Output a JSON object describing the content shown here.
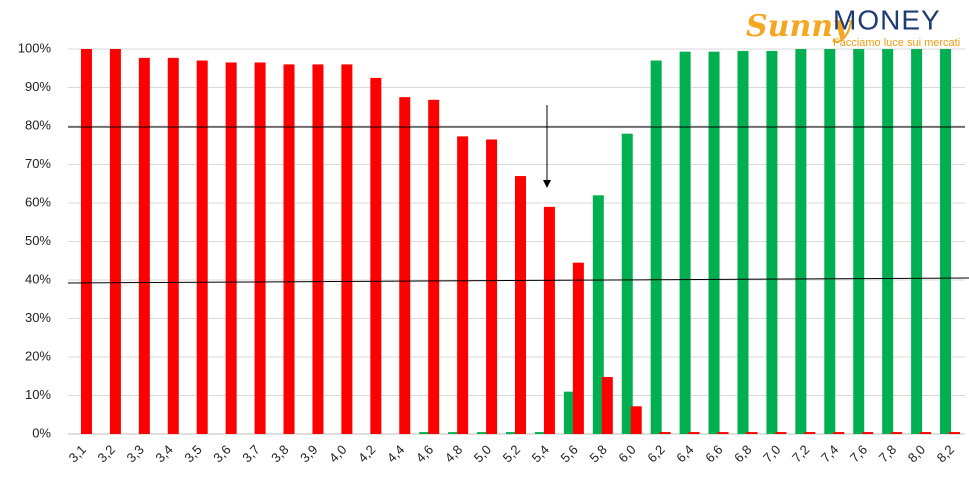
{
  "chart_data": {
    "type": "bar",
    "categories": [
      "3,1",
      "3,2",
      "3,3",
      "3,4",
      "3,5",
      "3,6",
      "3,7",
      "3,8",
      "3,9",
      "4,0",
      "4,2",
      "4,4",
      "4,6",
      "4,8",
      "5,0",
      "5,2",
      "5,4",
      "5,6",
      "5,8",
      "6,0",
      "6,2",
      "6,4",
      "6,6",
      "6,8",
      "7,0",
      "7,2",
      "7,4",
      "7,6",
      "7,8",
      "8,0",
      "8,2"
    ],
    "series": [
      {
        "color": "#00b050",
        "values": [
          0,
          0,
          0,
          0,
          0,
          0,
          0,
          0,
          0,
          0,
          0,
          0,
          0.5,
          0.5,
          0.5,
          0.5,
          0.5,
          11,
          62,
          78,
          97,
          99.3,
          99.3,
          99.5,
          99.5,
          100,
          100,
          100,
          100,
          100,
          100
        ]
      },
      {
        "color": "#ff0000",
        "values": [
          100,
          100,
          97.7,
          97.7,
          97,
          96.5,
          96.5,
          96,
          96,
          96,
          92.5,
          87.5,
          86.8,
          77.3,
          76.5,
          67,
          59,
          44.5,
          14.8,
          7.2,
          0.5,
          0.5,
          0.5,
          0.5,
          0.5,
          0.5,
          0.5,
          0.5,
          0.5,
          0.5,
          0.5
        ]
      }
    ],
    "ylim": [
      0,
      100
    ],
    "yticks": [
      {
        "value": 0,
        "label": "0%"
      },
      {
        "value": 10,
        "label": "10%"
      },
      {
        "value": 20,
        "label": "20%"
      },
      {
        "value": 30,
        "label": "30%"
      },
      {
        "value": 40,
        "label": "40%"
      },
      {
        "value": 50,
        "label": "50%"
      },
      {
        "value": 60,
        "label": "60%"
      },
      {
        "value": 70,
        "label": "70%"
      },
      {
        "value": 80,
        "label": "80%"
      },
      {
        "value": 90,
        "label": "90%"
      },
      {
        "value": 100,
        "label": "100%"
      }
    ],
    "grid": true
  },
  "logo": {
    "brand": "Sunny",
    "name": "MONEY",
    "tagline": "Facciamo luce sui mercati"
  }
}
